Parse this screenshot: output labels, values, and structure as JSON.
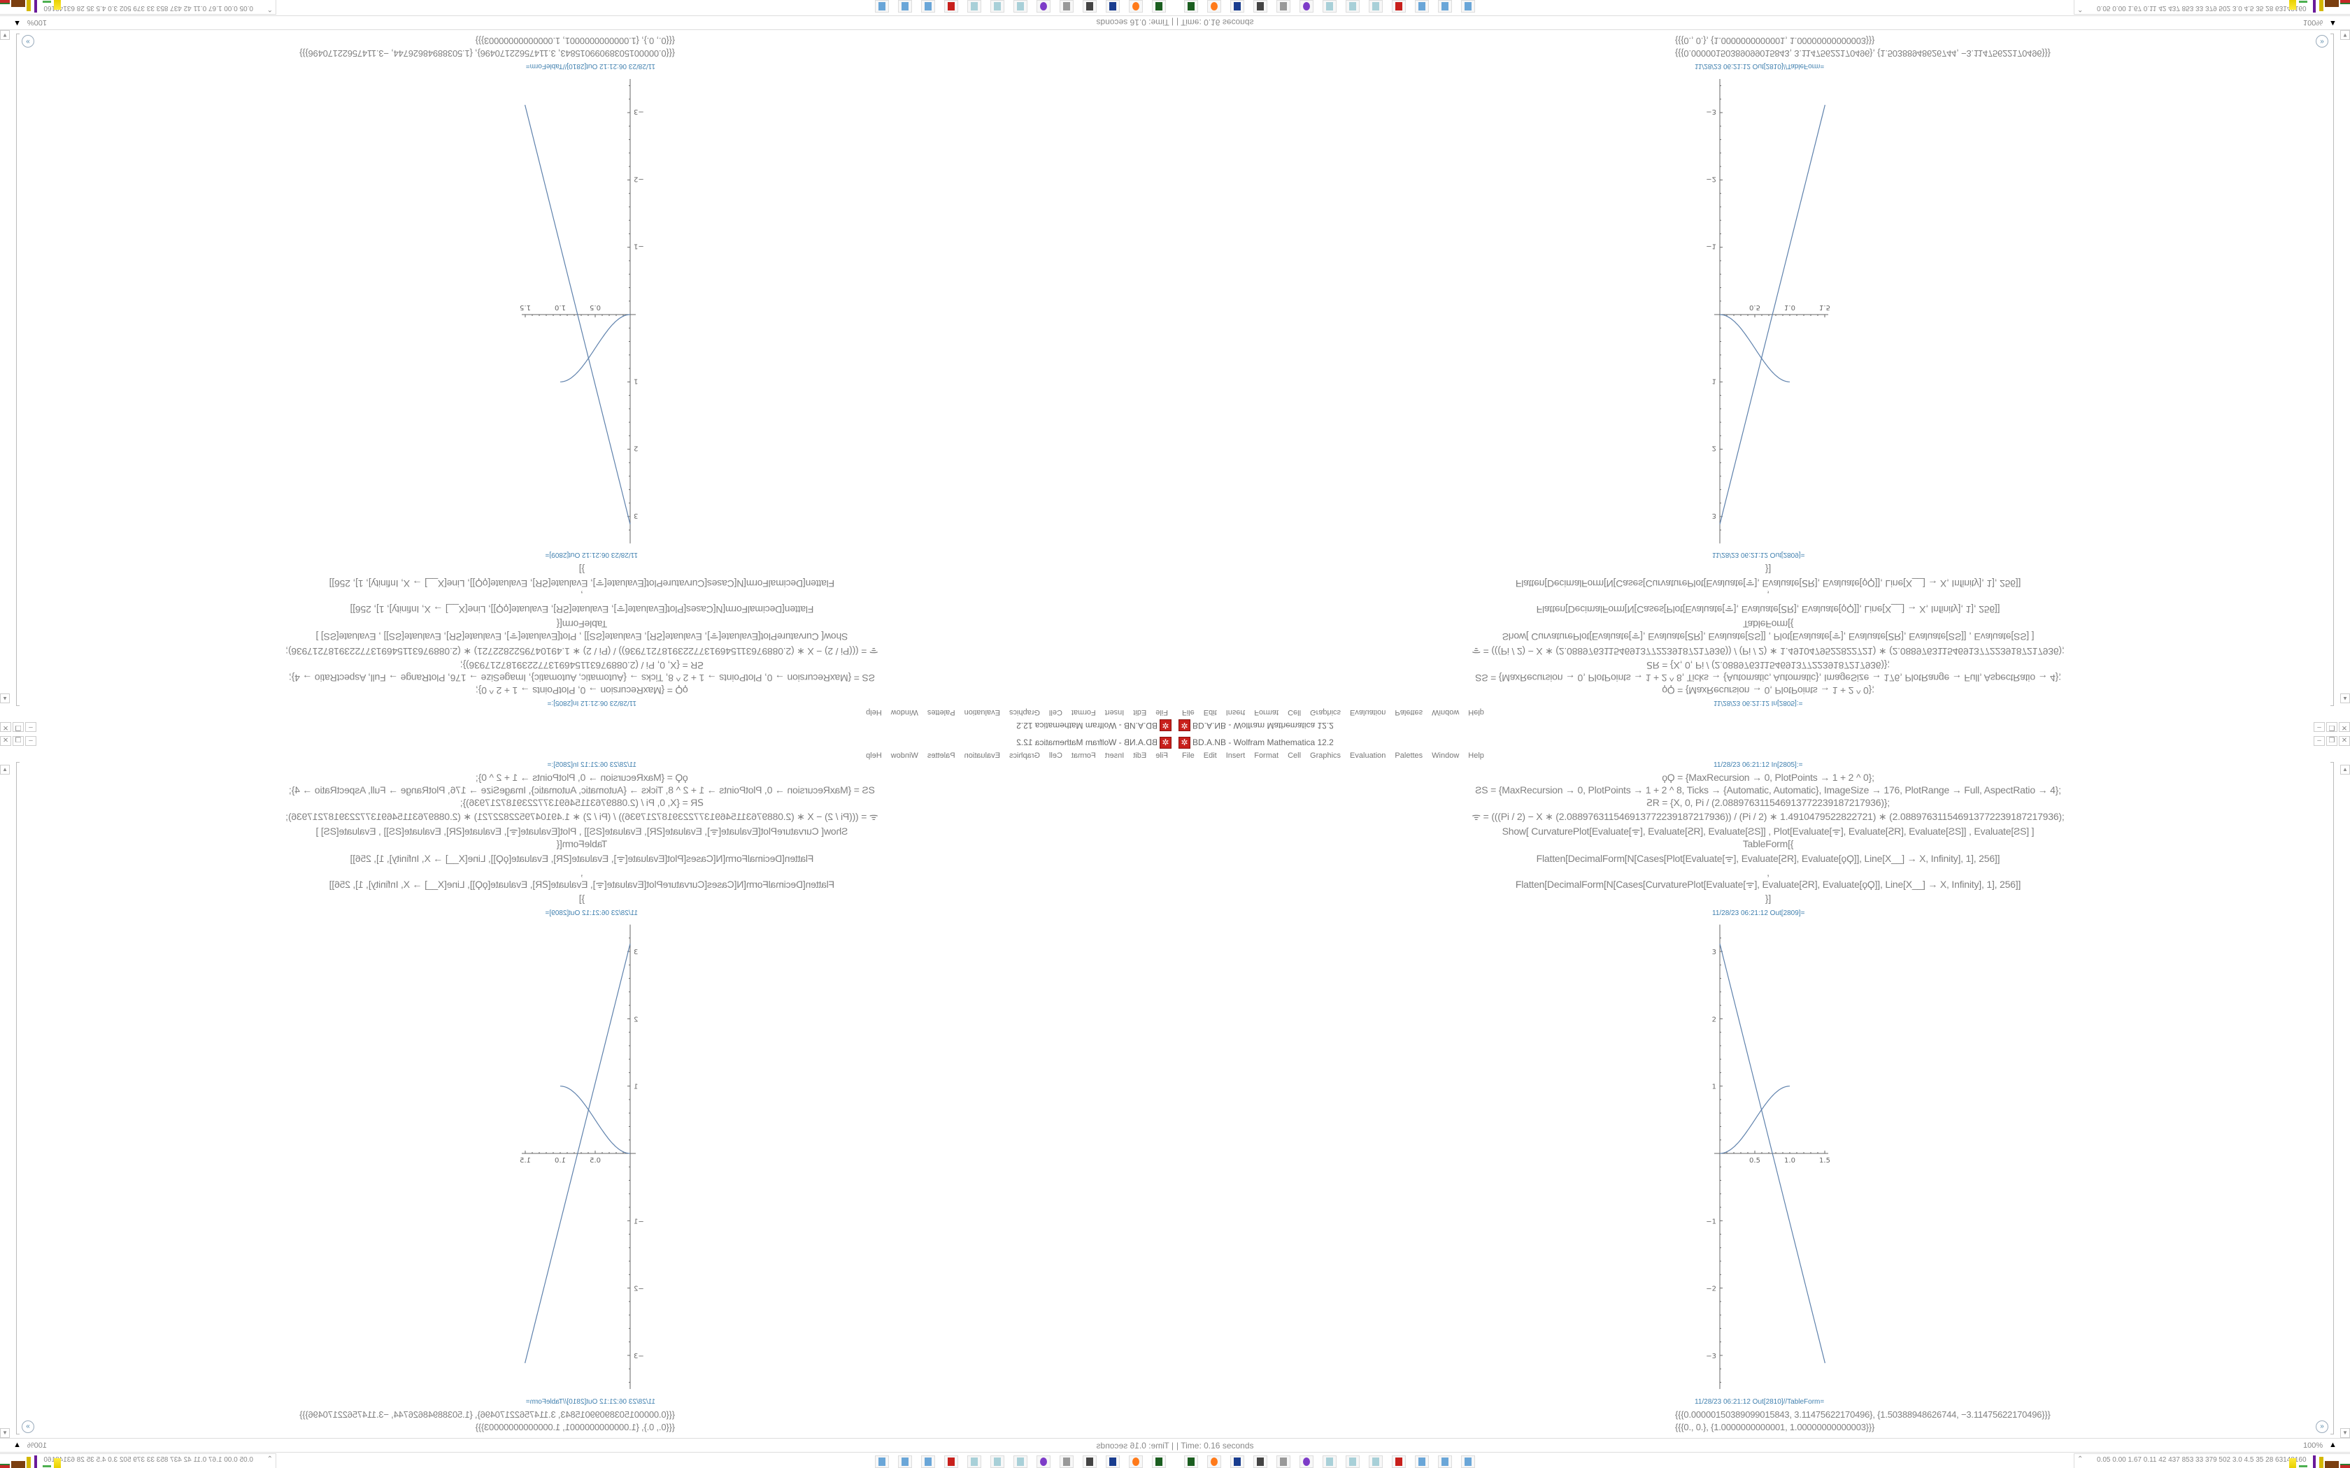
{
  "window": {
    "title": "BD.A.NB - Wolfram Mathematica 12.2",
    "app_icon": "mathematica-icon",
    "controls": [
      "minimize-icon",
      "restore-icon",
      "close-icon"
    ]
  },
  "menu": [
    "File",
    "Edit",
    "Insert",
    "Format",
    "Cell",
    "Graphics",
    "Evaluation",
    "Palettes",
    "Window",
    "Help"
  ],
  "notebook": {
    "in_label": "11/28/23 06:21:12 In[2805]:=",
    "code_lines": [
      "ϙϘ = {MaxRecursion → 0, PlotPoints → 1 + 2 ^ 0};",
      "ƧS = {MaxRecursion → 0, PlotPoints → 1 + 2 ^ 8, Ticks → {Automatic, Automatic}, ImageSize → 176, PlotRange → Full, AspectRatio → 4};",
      "ꙄR = {X, 0, Pi / (2.08897631154691377223918721793​6)};",
      "ᯤ = (((Pi / 2) − X ∗ (2.08897631154691377223918721793​6)) / (Pi / 2) ∗ 1.49104795228227​21) ∗ (2.08897631154691377223918721793​6);",
      "Show[   CurvaturePlot[Evaluate[ᯤ], Evaluate[ꙄR], Evaluate[ƧS]]   ,    Plot[Evaluate[ᯤ], Evaluate[ꙄR], Evaluate[ƧS]]   ,    Evaluate[ƧS]   ]",
      "TableForm[{",
      "Flatten[DecimalForm[N[Cases[Plot[Evaluate[ᯤ], Evaluate[ꙄR], Evaluate[ϙϘ]], Line[X__] → X, Infinity], 1], 256]]",
      ",",
      "Flatten[DecimalForm[N[Cases[CurvaturePlot[Evaluate[ᯤ], Evaluate[ꙄR], Evaluate[ϙϘ]], Line[X__] → X, Infinity], 1], 256]]",
      "}]"
    ],
    "out_plot_label": "11/28/23 06:21:12 Out[2809]=",
    "out_table_label": "11/28/23 06:21:12 Out[2810]//TableForm=",
    "out_lines": [
      "{{{0.00000150389099015843, 3.11475622170496}, {1.50388948626744, −3.11475622170496}}}",
      "{{{0., 0.}, {1.0000000000001, 1.00000000000003}}}"
    ],
    "plot": {
      "x_ticks": [
        "0.5",
        "1.0",
        "1.5"
      ],
      "x_tick_values": [
        0.5,
        1.0,
        1.5
      ],
      "y_ticks": [
        "3",
        "2",
        "1",
        "−1",
        "−2",
        "−3"
      ],
      "y_tick_values": [
        3,
        2,
        1,
        -1,
        -2,
        -3
      ],
      "xlim": [
        0,
        1.55
      ],
      "ylim": [
        -3.5,
        3.4
      ],
      "line": [
        [
          1.50389099015843e-06,
          3.11475622170496
        ],
        [
          1.50388948626744,
          -3.11475622170496
        ]
      ],
      "curve_endpoints": [
        [
          0,
          0
        ],
        [
          1,
          1
        ]
      ],
      "color": "#5e81ac"
    }
  },
  "status": {
    "time": "Time: 0.16 seconds",
    "zoom": "100%"
  },
  "taskbar": {
    "icons": [
      "terminal-icon",
      "firefox-icon",
      "floppy-icon",
      "monitor-icon",
      "speaker-icon",
      "tor-icon",
      "notepad-icon",
      "notepad-icon",
      "notepad-icon",
      "mathematica-icon",
      "calculator-icon",
      "calculator-icon",
      "calculator-icon"
    ],
    "meters": "0.05 0.00 1.67 0.11  42  437  853  33  379  502  3.0  4.5  35  28  63148160"
  }
}
